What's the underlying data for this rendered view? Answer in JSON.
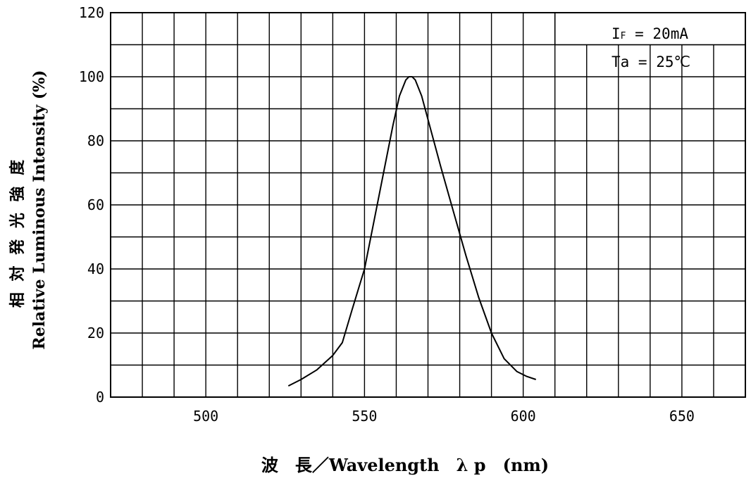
{
  "chart_data": {
    "type": "line",
    "title": "",
    "xlabel": "波　長／Wavelength　λ p　(nm)",
    "ylabel_jp": "相 対 発 光 強 度",
    "ylabel": "Relative Luminous Intensity (%)",
    "xlim": [
      470,
      670
    ],
    "ylim": [
      0,
      120
    ],
    "x_ticks": [
      {
        "value": 500,
        "label": "500"
      },
      {
        "value": 550,
        "label": "550"
      },
      {
        "value": 600,
        "label": "600"
      },
      {
        "value": 650,
        "label": "650"
      }
    ],
    "y_ticks": [
      {
        "value": 0,
        "label": "0"
      },
      {
        "value": 20,
        "label": "20"
      },
      {
        "value": 40,
        "label": "40"
      },
      {
        "value": 60,
        "label": "60"
      },
      {
        "value": 80,
        "label": "80"
      },
      {
        "value": 100,
        "label": "100"
      },
      {
        "value": 120,
        "label": "120"
      }
    ],
    "grid": true,
    "grid_x_step": 10,
    "grid_y_step": 10,
    "series": [
      {
        "color": "#000000",
        "x": [
          526,
          530,
          535,
          540,
          543,
          546,
          550,
          553,
          556,
          559,
          561,
          563,
          564,
          565,
          566,
          568,
          571,
          574,
          578,
          582,
          586,
          590,
          594,
          598,
          601,
          604
        ],
        "y": [
          3.5,
          5.5,
          8.5,
          13,
          17,
          27,
          40,
          55,
          70,
          85,
          94,
          99,
          100,
          100,
          99,
          94,
          83,
          72,
          58,
          44,
          31,
          20,
          12,
          8,
          6.5,
          5.5
        ]
      }
    ],
    "annotations": {
      "line1_main": "I",
      "line1_sub": "F",
      "line1_rest": " = 20mA",
      "line2": "Ta = 25℃",
      "placement": "top-right"
    }
  }
}
